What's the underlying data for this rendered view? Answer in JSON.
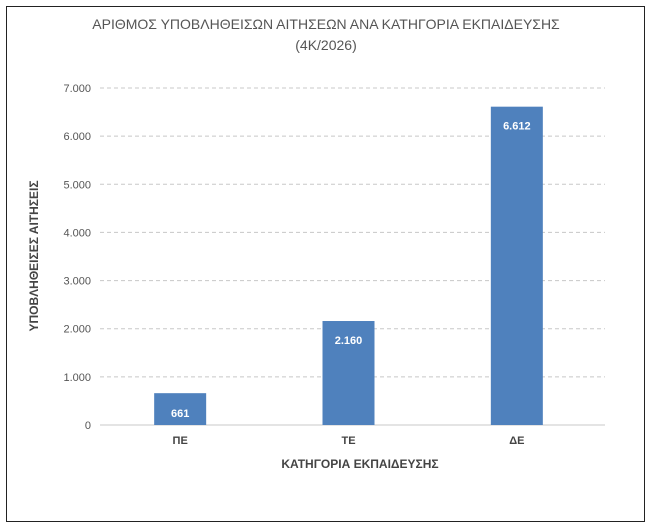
{
  "chart_data": {
    "type": "bar",
    "title_line1": "ΑΡΙΘΜΟΣ ΥΠΟΒΛΗΘΕΙΣΩΝ ΑΙΤΗΣΕΩΝ ΑΝΑ ΚΑΤΗΓΟΡΙΑ ΕΚΠΑΙΔΕΥΣΗΣ",
    "title_line2": "(4Κ/2026)",
    "xlabel": "ΚΑΤΗΓΟΡΙΑ ΕΚΠΑΙΔΕΥΣΗΣ",
    "ylabel": "ΥΠΟΒΛΗΘΕΙΣΕΣ ΑΙΤΗΣΕΙΣ",
    "categories": [
      "ΠΕ",
      "ΤΕ",
      "ΔΕ"
    ],
    "values": [
      661,
      2160,
      6612
    ],
    "data_labels": [
      "661",
      "2.160",
      "6.612"
    ],
    "ylim": [
      0,
      7000
    ],
    "yticks": [
      0,
      1000,
      2000,
      3000,
      4000,
      5000,
      6000,
      7000
    ],
    "ytick_labels": [
      "0",
      "1.000",
      "2.000",
      "3.000",
      "4.000",
      "5.000",
      "6.000",
      "7.000"
    ],
    "grid": true,
    "bar_color": "#4f81bd"
  }
}
